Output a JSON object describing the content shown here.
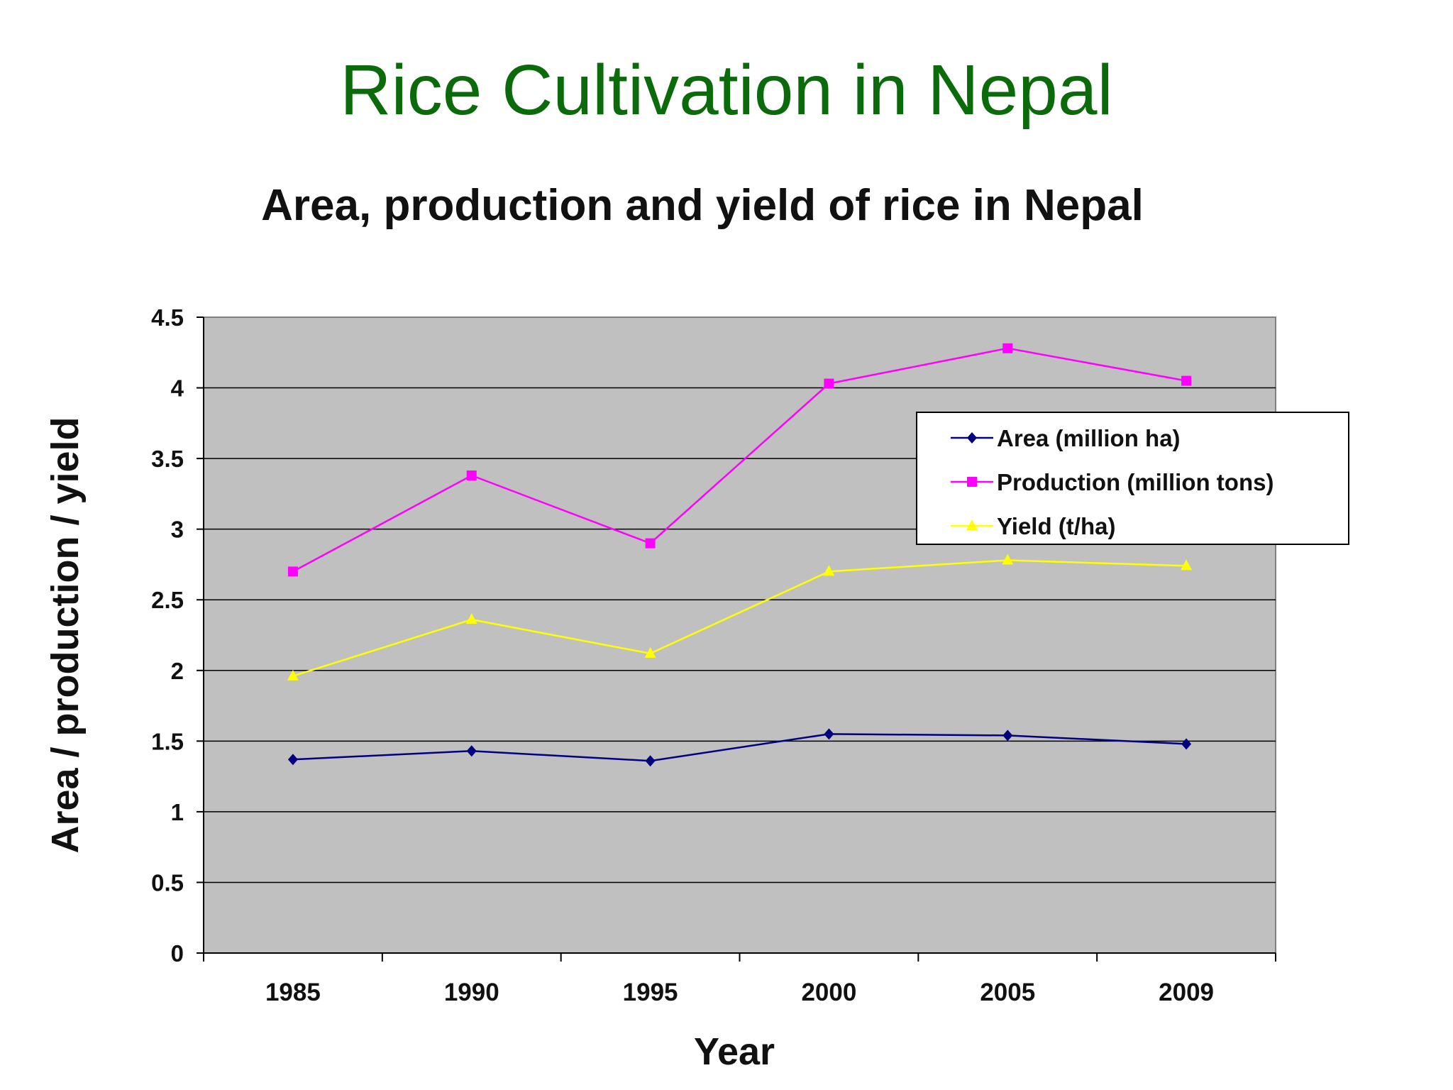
{
  "slide": {
    "title": "Rice Cultivation in Nepal"
  },
  "chart_data": {
    "type": "line",
    "title": "Area, production and yield of rice in Nepal",
    "xlabel": "Year",
    "ylabel": "Area / production / yield",
    "categories": [
      "1985",
      "1990",
      "1995",
      "2000",
      "2005",
      "2009"
    ],
    "ylim": [
      0,
      4.5
    ],
    "yticks": [
      "0",
      "0.5",
      "1",
      "1.5",
      "2",
      "2.5",
      "3",
      "3.5",
      "4",
      "4.5"
    ],
    "grid": true,
    "legend_position": "top-right",
    "plot_background": "#c0c0c0",
    "series": [
      {
        "name": "Area (million ha)",
        "values": [
          1.37,
          1.43,
          1.36,
          1.55,
          1.54,
          1.48
        ],
        "color": "#000080",
        "marker": "diamond"
      },
      {
        "name": "Production (million tons)",
        "values": [
          2.7,
          3.38,
          2.9,
          4.03,
          4.28,
          4.05
        ],
        "color": "#ff00ff",
        "marker": "square"
      },
      {
        "name": "Yield (t/ha)",
        "values": [
          1.96,
          2.36,
          2.12,
          2.7,
          2.78,
          2.74
        ],
        "color": "#ffff00",
        "marker": "triangle"
      }
    ]
  }
}
